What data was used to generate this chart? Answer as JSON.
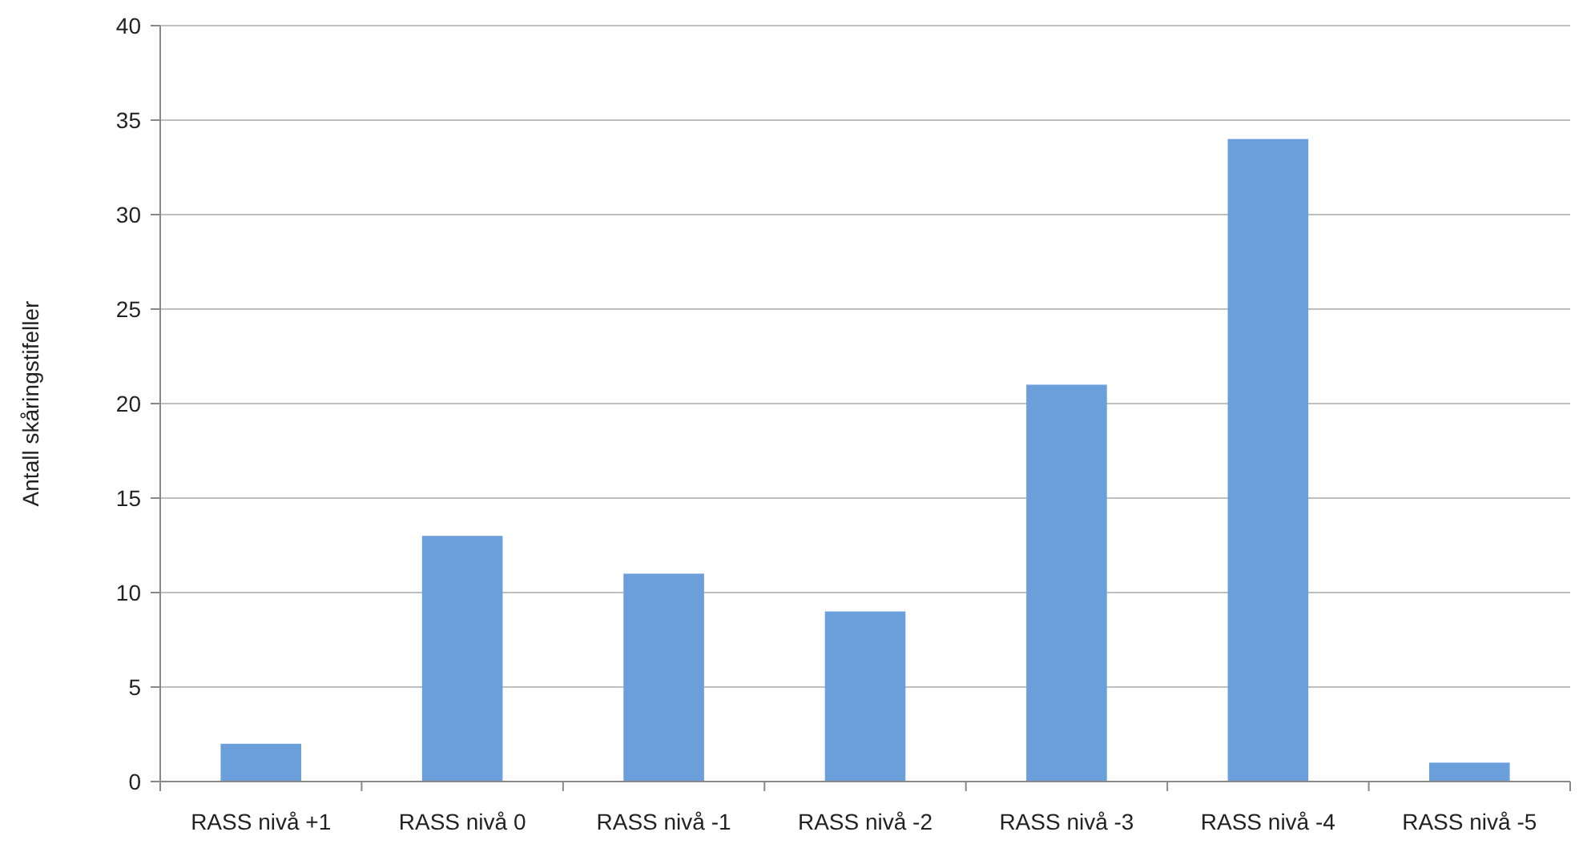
{
  "chart_data": {
    "type": "bar",
    "ylabel": "Antall skåringstifeller",
    "categories": [
      "RASS nivå +1",
      "RASS nivå 0",
      "RASS nivå -1",
      "RASS nivå -2",
      "RASS nivå -3",
      "RASS nivå -4",
      "RASS nivå -5"
    ],
    "values": [
      2,
      13,
      11,
      9,
      21,
      34,
      1
    ],
    "color": "#6a9fdb",
    "ylim": [
      0,
      40
    ],
    "yticks": [
      0,
      5,
      10,
      15,
      20,
      25,
      30,
      35,
      40
    ],
    "grid": "y"
  }
}
